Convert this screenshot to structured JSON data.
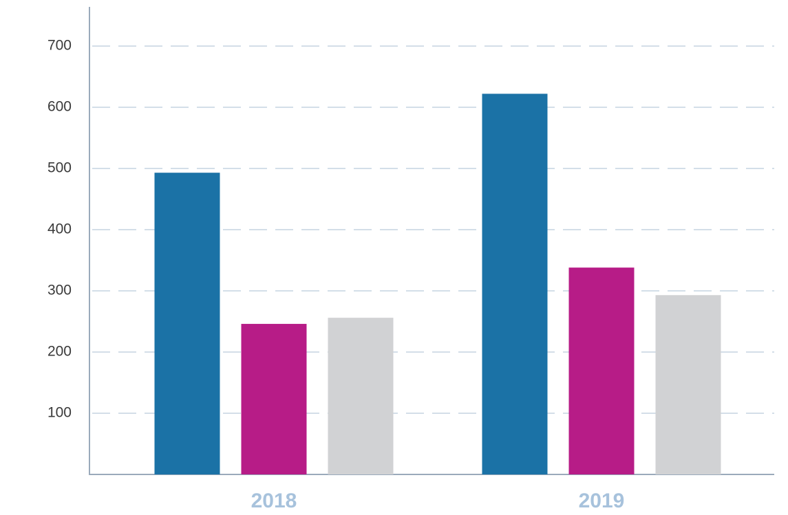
{
  "chart_data": {
    "type": "bar",
    "categories": [
      "2018",
      "2019"
    ],
    "series": [
      {
        "color": "#1b72a6",
        "values": [
          493,
          622
        ]
      },
      {
        "color": "#b71c87",
        "values": [
          246,
          338
        ]
      },
      {
        "color": "#d1d2d4",
        "values": [
          256,
          293
        ]
      }
    ],
    "ylim": [
      0,
      764
    ],
    "yticks": [
      100,
      200,
      300,
      400,
      500,
      600,
      700
    ],
    "grid": true
  }
}
